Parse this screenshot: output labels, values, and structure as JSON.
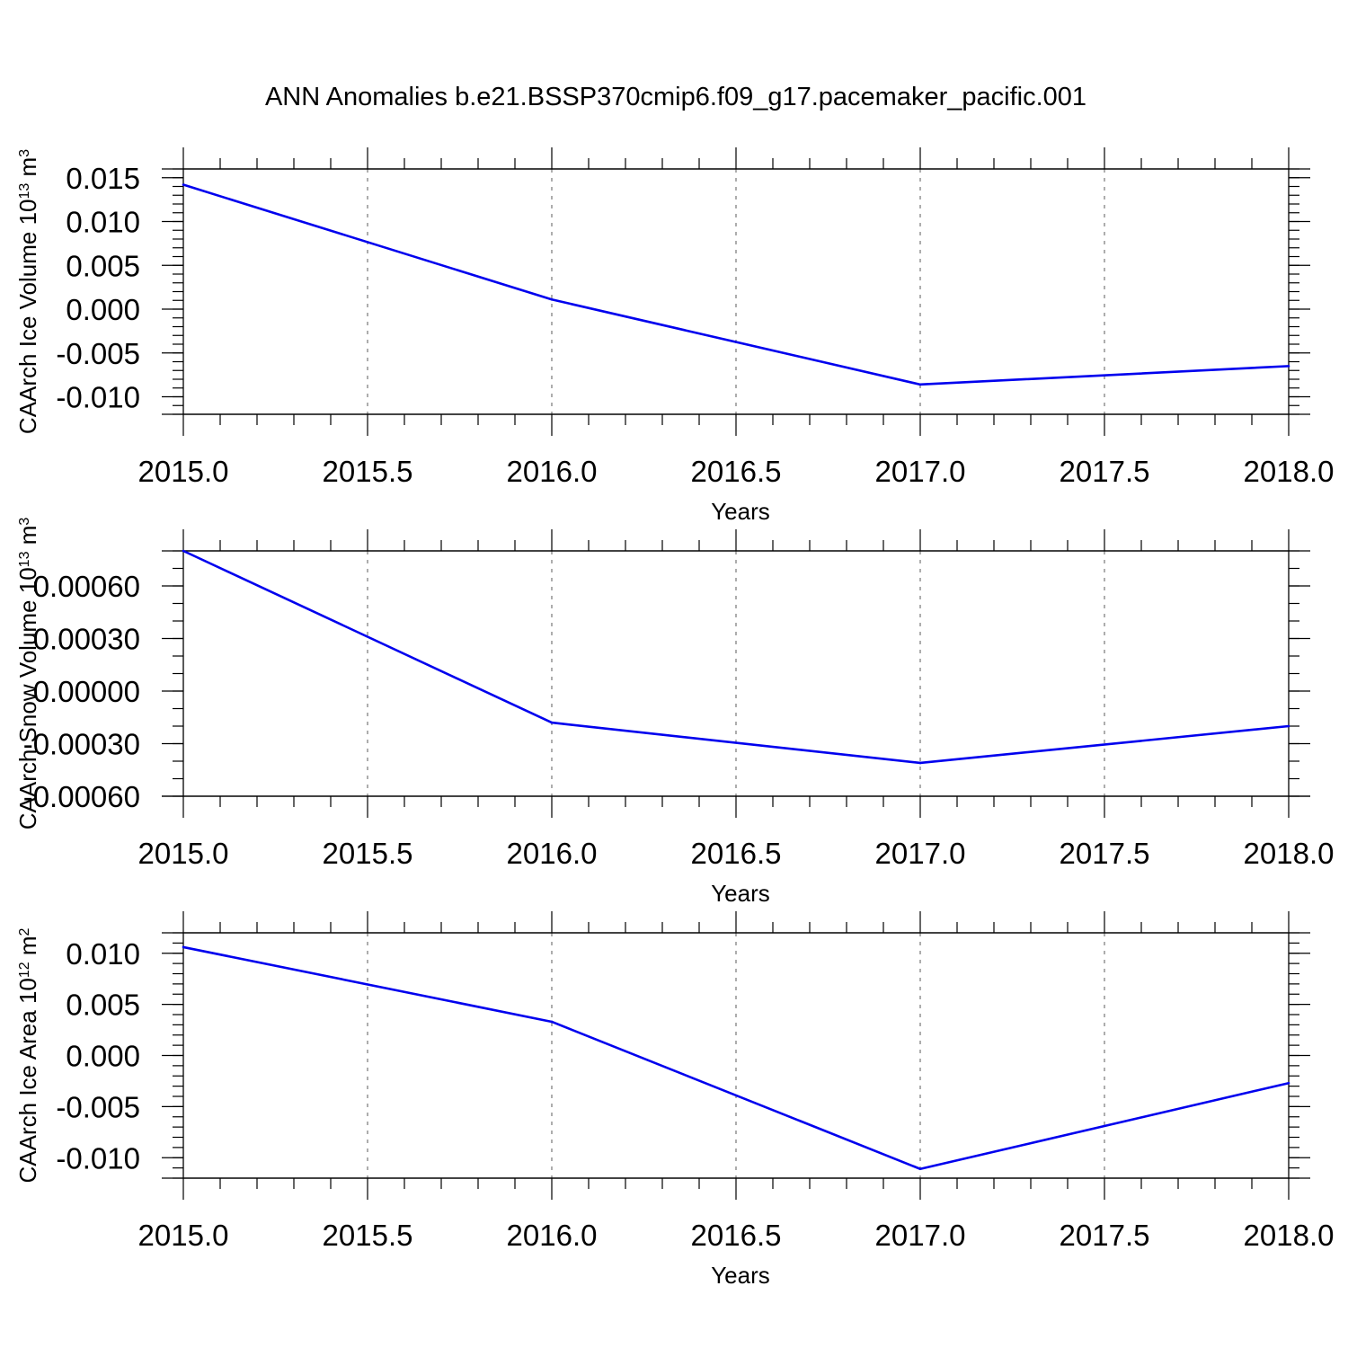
{
  "title": "ANN Anomalies b.e21.BSSP370cmip6.f09_g17.pacemaker_pacific.001",
  "colors": {
    "series": "#0000ee",
    "axis": "#000000",
    "grid": "#777777"
  },
  "chart_data": [
    {
      "type": "line",
      "xlabel": "Years",
      "ylabel": {
        "text": "CAArch Ice Volume 10",
        "sup": "13",
        "tail": " m",
        "sup2": "3"
      },
      "x": [
        2015,
        2016,
        2017,
        2018
      ],
      "values": [
        0.0142,
        0.0011,
        -0.0086,
        -0.0065
      ],
      "xlim": [
        2015,
        2018
      ],
      "ylim": [
        -0.012,
        0.016
      ],
      "xticks": [
        "2015.0",
        "2015.5",
        "2016.0",
        "2016.5",
        "2017.0",
        "2017.5",
        "2018.0"
      ],
      "yticks": [
        "0.015",
        "0.010",
        "0.005",
        "0.000",
        "-0.005",
        "-0.010"
      ],
      "ytick_values": [
        0.015,
        0.01,
        0.005,
        0.0,
        -0.005,
        -0.01
      ],
      "yminor_step": 0.001,
      "grid": "vertical dashed at major x ticks"
    },
    {
      "type": "line",
      "xlabel": "Years",
      "ylabel": {
        "text": "CAArch Snow Volume 10",
        "sup": "13",
        "tail": " m",
        "sup2": "3"
      },
      "x": [
        2015,
        2016,
        2017,
        2018
      ],
      "values": [
        0.0008,
        -0.00018,
        -0.00041,
        -0.0002
      ],
      "xlim": [
        2015,
        2018
      ],
      "ylim": [
        -0.0006,
        0.0008
      ],
      "xticks": [
        "2015.0",
        "2015.5",
        "2016.0",
        "2016.5",
        "2017.0",
        "2017.5",
        "2018.0"
      ],
      "yticks": [
        "0.00060",
        "0.00030",
        "0.00000",
        "-0.00030",
        "-0.00060"
      ],
      "ytick_values": [
        0.0006,
        0.0003,
        0.0,
        -0.0003,
        -0.0006
      ],
      "yminor_step": 0.0001,
      "grid": "vertical dashed at major x ticks"
    },
    {
      "type": "line",
      "xlabel": "Years",
      "ylabel": {
        "text": "CAArch Ice Area 10",
        "sup": "12",
        "tail": " m",
        "sup2": "2"
      },
      "x": [
        2015,
        2016,
        2017,
        2018
      ],
      "values": [
        0.0106,
        0.0033,
        -0.0111,
        -0.0027
      ],
      "xlim": [
        2015,
        2018
      ],
      "ylim": [
        -0.012,
        0.012
      ],
      "xticks": [
        "2015.0",
        "2015.5",
        "2016.0",
        "2016.5",
        "2017.0",
        "2017.5",
        "2018.0"
      ],
      "yticks": [
        "0.010",
        "0.005",
        "0.000",
        "-0.005",
        "-0.010"
      ],
      "ytick_values": [
        0.01,
        0.005,
        0.0,
        -0.005,
        -0.01
      ],
      "yminor_step": 0.001,
      "grid": "vertical dashed at major x ticks"
    }
  ]
}
